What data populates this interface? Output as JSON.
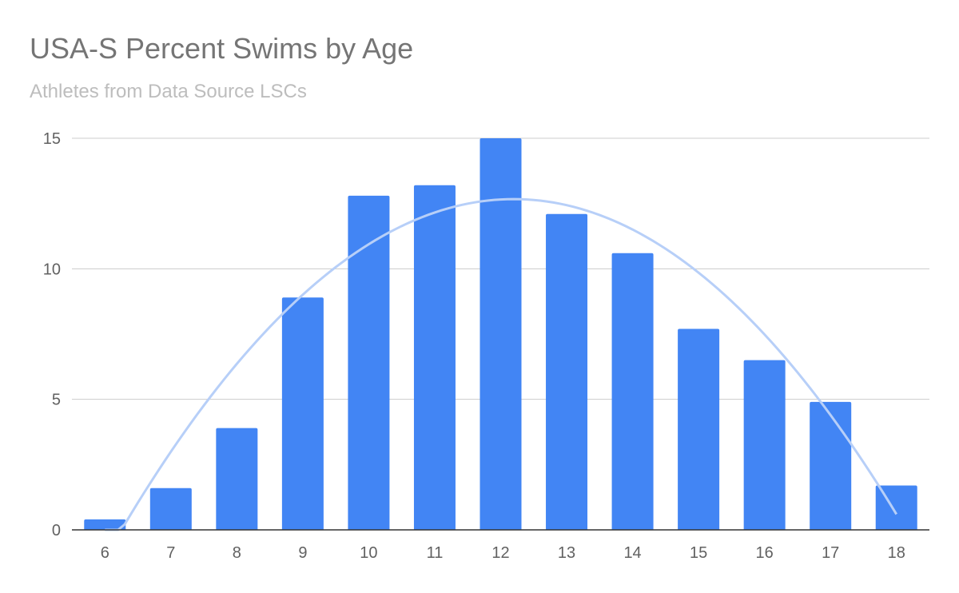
{
  "chart_data": {
    "type": "bar",
    "title": "USA-S Percent Swims by Age",
    "subtitle": "Athletes from Data Source LSCs",
    "xlabel": "",
    "ylabel": "",
    "categories": [
      "6",
      "7",
      "8",
      "9",
      "10",
      "11",
      "12",
      "13",
      "14",
      "15",
      "16",
      "17",
      "18"
    ],
    "values": [
      0.4,
      1.6,
      3.9,
      8.9,
      12.8,
      13.2,
      15.0,
      12.1,
      10.6,
      7.7,
      6.5,
      4.9,
      1.7
    ],
    "ylim": [
      0,
      15
    ],
    "yticks": [
      "0",
      "5",
      "10",
      "15"
    ],
    "grid": true,
    "legend": "none",
    "bar_color": "#4285f4",
    "trendline": {
      "type": "polynomial",
      "color": "#b7cff8"
    }
  }
}
